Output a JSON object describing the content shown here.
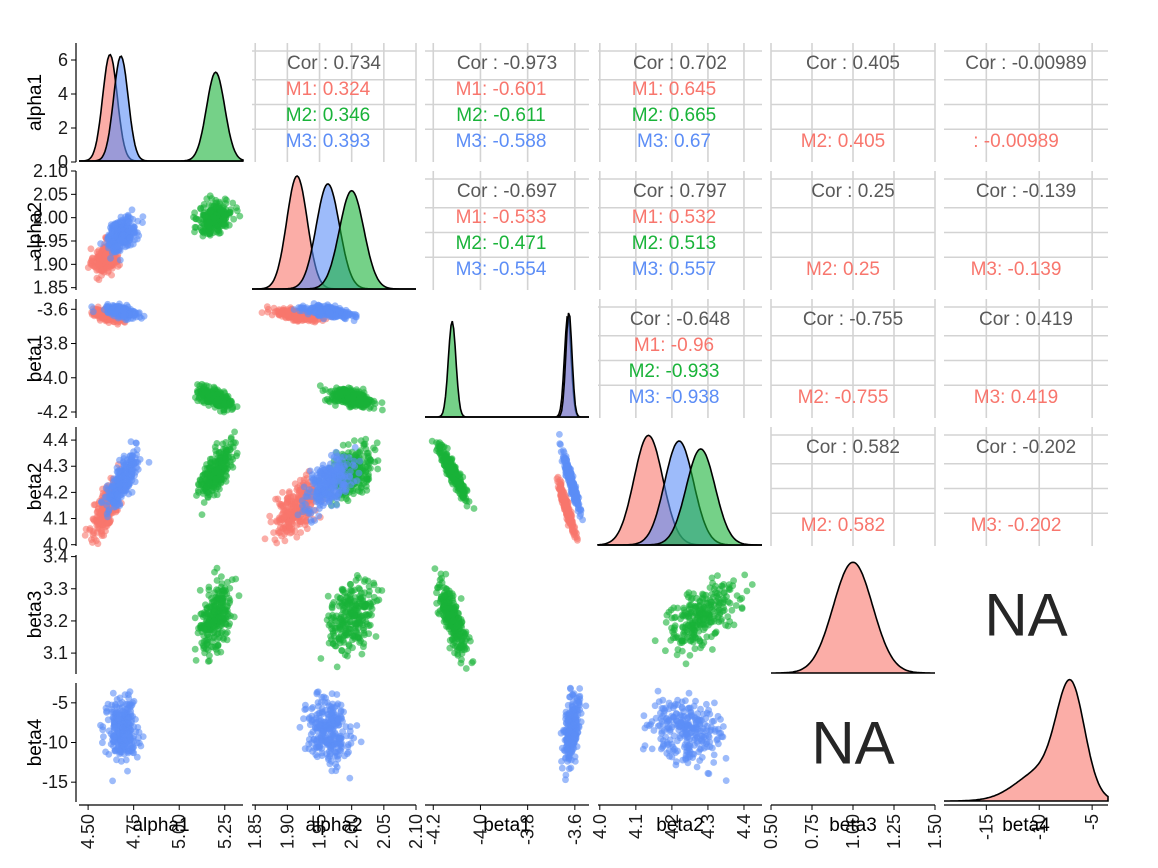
{
  "colors": {
    "M1": "#F8766D",
    "M2": "#19B339",
    "M3": "#5C8DF6"
  },
  "chart_data": {
    "type": "scatter",
    "variables": [
      "alpha1",
      "alpha2",
      "beta1",
      "beta2",
      "beta3",
      "beta4"
    ],
    "ranges": {
      "alpha1": [
        4.45,
        5.35
      ],
      "alpha2": [
        1.845,
        2.1
      ],
      "beta1": [
        -4.235,
        -3.54
      ],
      "beta2": [
        3.995,
        4.45
      ],
      "beta3": [
        3.035,
        3.405
      ],
      "beta4": [
        -17.5,
        -2.5
      ]
    },
    "diag_ranges": {
      "beta3": [
        0.5,
        1.5
      ],
      "beta4": [
        -19,
        -3.5
      ]
    },
    "ticks": {
      "alpha1": [
        4.5,
        4.75,
        5.0,
        5.25
      ],
      "alpha2": [
        1.85,
        1.9,
        1.95,
        2.0,
        2.05,
        2.1
      ],
      "beta1": [
        -4.2,
        -4.0,
        -3.8,
        -3.6
      ],
      "beta2": [
        4.0,
        4.1,
        4.2,
        4.3,
        4.4
      ],
      "beta3": [
        3.1,
        3.2,
        3.3,
        3.4
      ],
      "beta4": [
        -15,
        -10,
        -5
      ]
    },
    "tick_labels": {
      "alpha1": [
        "4.50",
        "4.75",
        "5.00",
        "5.25"
      ],
      "alpha2": [
        "1.85",
        "1.90",
        "1.95",
        "2.00",
        "2.05",
        "2.10"
      ],
      "beta1": [
        "-4.2",
        "-4.0",
        "-3.8",
        "-3.6"
      ],
      "beta2": [
        "4.0",
        "4.1",
        "4.2",
        "4.3",
        "4.4"
      ],
      "beta3": [
        "3.1",
        "3.2",
        "3.3",
        "3.4"
      ],
      "beta4": [
        "-15",
        "-10",
        "-5"
      ]
    },
    "bottom_ticks": {
      "alpha1": {
        "values": [
          4.5,
          4.75,
          5.0,
          5.25
        ],
        "labels": [
          "4.50",
          "4.75",
          "5.00",
          "5.25"
        ]
      },
      "alpha2": {
        "values": [
          1.85,
          1.9,
          1.95,
          2.0,
          2.05,
          2.1
        ],
        "labels": [
          "1.85",
          "1.90",
          "1.95",
          "2.00",
          "2.05",
          "2.10"
        ]
      },
      "beta1": {
        "values": [
          -4.2,
          -4.0,
          -3.8,
          -3.6
        ],
        "labels": [
          "-4.2",
          "-4.0",
          "-3.8",
          "-3.6"
        ]
      },
      "beta2": {
        "values": [
          4.0,
          4.1,
          4.2,
          4.3,
          4.4
        ],
        "labels": [
          "4.0",
          "4.1",
          "4.2",
          "4.3",
          "4.4"
        ]
      },
      "beta3": {
        "values": [
          0.5,
          0.75,
          1.0,
          1.25,
          1.5
        ],
        "labels": [
          "0.50",
          "0.75",
          "1.00",
          "1.25",
          "1.50"
        ]
      },
      "beta4": {
        "values": [
          -15,
          -10,
          -5
        ],
        "labels": [
          "-15",
          "-10",
          "-5"
        ]
      }
    },
    "diagonal": [
      {
        "var": "alpha1",
        "groups": [
          {
            "group": "M1",
            "modes": [
              {
                "mean": 4.62,
                "sd": 0.04,
                "peak": 6.6
              }
            ]
          },
          {
            "group": "M3",
            "modes": [
              {
                "mean": 4.68,
                "sd": 0.04,
                "peak": 6.5
              }
            ]
          },
          {
            "group": "M2",
            "modes": [
              {
                "mean": 5.2,
                "sd": 0.05,
                "peak": 5.5
              }
            ]
          }
        ]
      },
      {
        "var": "alpha2",
        "groups": [
          {
            "group": "M1",
            "modes": [
              {
                "mean": 1.915,
                "sd": 0.016,
                "peak": 1
              }
            ]
          },
          {
            "group": "M3",
            "modes": [
              {
                "mean": 1.963,
                "sd": 0.018,
                "peak": 0.93
              }
            ]
          },
          {
            "group": "M2",
            "modes": [
              {
                "mean": 2.0,
                "sd": 0.019,
                "peak": 0.87
              }
            ]
          }
        ]
      },
      {
        "var": "beta1",
        "groups": [
          {
            "group": "M2",
            "modes": [
              {
                "mean": -4.12,
                "sd": 0.016,
                "peak": 0.85
              }
            ]
          },
          {
            "group": "M1",
            "modes": [
              {
                "mean": -3.63,
                "sd": 0.014,
                "peak": 0.9
              }
            ]
          },
          {
            "group": "M3",
            "modes": [
              {
                "mean": -3.625,
                "sd": 0.013,
                "peak": 0.93
              }
            ]
          }
        ]
      },
      {
        "var": "beta2",
        "groups": [
          {
            "group": "M1",
            "modes": [
              {
                "mean": 4.135,
                "sd": 0.04,
                "peak": 0.97
              }
            ]
          },
          {
            "group": "M3",
            "modes": [
              {
                "mean": 4.22,
                "sd": 0.04,
                "peak": 0.92
              }
            ]
          },
          {
            "group": "M2",
            "modes": [
              {
                "mean": 4.28,
                "sd": 0.04,
                "peak": 0.85
              }
            ]
          }
        ]
      },
      {
        "var": "beta3",
        "groups": [
          {
            "group": "M1",
            "modes": [
              {
                "mean": 1.0,
                "sd": 0.12,
                "peak": 0.98
              }
            ]
          }
        ]
      },
      {
        "var": "beta4",
        "groups": [
          {
            "group": "M1",
            "modes": [
              {
                "mean": -7.0,
                "sd": 1.3,
                "peak": 0.9
              },
              {
                "mean": -9.5,
                "sd": 2.5,
                "peak": 0.28
              }
            ]
          }
        ]
      }
    ],
    "correlations": [
      {
        "row": "alpha1",
        "col": "alpha2",
        "overall": "Cor : 0.734",
        "groups": [
          {
            "label": "M1: 0.324",
            "group": "M1"
          },
          {
            "label": "M2: 0.346",
            "group": "M2"
          },
          {
            "label": "M3: 0.393",
            "group": "M3"
          }
        ]
      },
      {
        "row": "alpha1",
        "col": "beta1",
        "overall": "Cor : -0.973",
        "groups": [
          {
            "label": "M1: -0.601",
            "group": "M1"
          },
          {
            "label": "M2: -0.611",
            "group": "M2"
          },
          {
            "label": "M3: -0.588",
            "group": "M3"
          }
        ]
      },
      {
        "row": "alpha1",
        "col": "beta2",
        "overall": "Cor : 0.702",
        "groups": [
          {
            "label": "M1: 0.645",
            "group": "M1"
          },
          {
            "label": "M2: 0.665",
            "group": "M2"
          },
          {
            "label": "M3: 0.67",
            "group": "M3"
          }
        ]
      },
      {
        "row": "alpha1",
        "col": "beta3",
        "overall": "Cor : 0.405",
        "groups": [
          {
            "label": "M2: 0.405",
            "group": "M1"
          }
        ]
      },
      {
        "row": "alpha1",
        "col": "beta4",
        "overall": "Cor : -0.00989",
        "groups": [
          {
            "label": ": -0.00989",
            "group": "M1"
          }
        ]
      },
      {
        "row": "alpha2",
        "col": "beta1",
        "overall": "Cor : -0.697",
        "groups": [
          {
            "label": "M1: -0.533",
            "group": "M1"
          },
          {
            "label": "M2: -0.471",
            "group": "M2"
          },
          {
            "label": "M3: -0.554",
            "group": "M3"
          }
        ]
      },
      {
        "row": "alpha2",
        "col": "beta2",
        "overall": "Cor : 0.797",
        "groups": [
          {
            "label": "M1: 0.532",
            "group": "M1"
          },
          {
            "label": "M2: 0.513",
            "group": "M2"
          },
          {
            "label": "M3: 0.557",
            "group": "M3"
          }
        ]
      },
      {
        "row": "alpha2",
        "col": "beta3",
        "overall": "Cor : 0.25",
        "groups": [
          {
            "label": "M2: 0.25",
            "group": "M1"
          }
        ]
      },
      {
        "row": "alpha2",
        "col": "beta4",
        "overall": "Cor : -0.139",
        "groups": [
          {
            "label": "M3: -0.139",
            "group": "M1"
          }
        ]
      },
      {
        "row": "beta1",
        "col": "beta2",
        "overall": "Cor : -0.648",
        "groups": [
          {
            "label": "M1: -0.96",
            "group": "M1"
          },
          {
            "label": "M2: -0.933",
            "group": "M2"
          },
          {
            "label": "M3: -0.938",
            "group": "M3"
          }
        ]
      },
      {
        "row": "beta1",
        "col": "beta3",
        "overall": "Cor : -0.755",
        "groups": [
          {
            "label": "M2: -0.755",
            "group": "M1"
          }
        ]
      },
      {
        "row": "beta1",
        "col": "beta4",
        "overall": "Cor : 0.419",
        "groups": [
          {
            "label": "M3: 0.419",
            "group": "M1"
          }
        ]
      },
      {
        "row": "beta2",
        "col": "beta3",
        "overall": "Cor : 0.582",
        "groups": [
          {
            "label": "M2: 0.582",
            "group": "M1"
          }
        ]
      },
      {
        "row": "beta2",
        "col": "beta4",
        "overall": "Cor : -0.202",
        "groups": [
          {
            "label": "M3: -0.202",
            "group": "M1"
          }
        ]
      }
    ],
    "na_cells": [
      {
        "row": "beta3",
        "col": "beta4",
        "label": "NA"
      },
      {
        "row": "beta4",
        "col": "beta3",
        "label": "NA"
      }
    ],
    "group_stats": {
      "alpha1": {
        "M1": [
          4.6,
          0.035
        ],
        "M2": [
          5.2,
          0.045
        ],
        "M3": [
          4.685,
          0.04
        ]
      },
      "alpha2": {
        "M1": [
          1.915,
          0.017
        ],
        "M2": [
          2.0,
          0.018
        ],
        "M3": [
          1.965,
          0.018
        ]
      },
      "beta1": {
        "M1": [
          -3.635,
          0.018
        ],
        "M2": [
          -4.12,
          0.03
        ],
        "M3": [
          -3.615,
          0.017
        ]
      },
      "beta2": {
        "M1": [
          4.14,
          0.05
        ],
        "M2": [
          4.28,
          0.05
        ],
        "M3": [
          4.24,
          0.05
        ]
      },
      "beta3": {
        "M2": [
          3.21,
          0.055
        ]
      },
      "beta4": {
        "M3": [
          -8.5,
          2.0
        ]
      }
    },
    "scatter": [
      {
        "row": "alpha2",
        "col": "alpha1",
        "groups": [
          {
            "group": "M1",
            "r": 0.32
          },
          {
            "group": "M2",
            "r": 0.35
          },
          {
            "group": "M3",
            "r": 0.39
          }
        ]
      },
      {
        "row": "beta1",
        "col": "alpha1",
        "groups": [
          {
            "group": "M1",
            "r": -0.6
          },
          {
            "group": "M2",
            "r": -0.61
          },
          {
            "group": "M3",
            "r": -0.59
          }
        ]
      },
      {
        "row": "beta1",
        "col": "alpha2",
        "groups": [
          {
            "group": "M1",
            "r": -0.53
          },
          {
            "group": "M2",
            "r": -0.47
          },
          {
            "group": "M3",
            "r": -0.55
          }
        ]
      },
      {
        "row": "beta2",
        "col": "alpha1",
        "groups": [
          {
            "group": "M1",
            "r": 0.65
          },
          {
            "group": "M2",
            "r": 0.67
          },
          {
            "group": "M3",
            "r": 0.67
          }
        ]
      },
      {
        "row": "beta2",
        "col": "alpha2",
        "groups": [
          {
            "group": "M1",
            "r": 0.53
          },
          {
            "group": "M2",
            "r": 0.51
          },
          {
            "group": "M3",
            "r": 0.56
          }
        ]
      },
      {
        "row": "beta2",
        "col": "beta1",
        "groups": [
          {
            "group": "M1",
            "r": -0.96
          },
          {
            "group": "M2",
            "r": -0.93
          },
          {
            "group": "M3",
            "r": -0.94
          }
        ]
      },
      {
        "row": "beta3",
        "col": "alpha1",
        "groups": [
          {
            "group": "M2",
            "r": 0.4
          }
        ]
      },
      {
        "row": "beta3",
        "col": "alpha2",
        "groups": [
          {
            "group": "M2",
            "r": 0.25
          }
        ]
      },
      {
        "row": "beta3",
        "col": "beta1",
        "groups": [
          {
            "group": "M2",
            "r": -0.75
          }
        ]
      },
      {
        "row": "beta3",
        "col": "beta2",
        "groups": [
          {
            "group": "M2",
            "r": 0.58
          }
        ]
      },
      {
        "row": "beta4",
        "col": "alpha1",
        "groups": [
          {
            "group": "M3",
            "r": -0.01
          }
        ]
      },
      {
        "row": "beta4",
        "col": "alpha2",
        "groups": [
          {
            "group": "M3",
            "r": -0.14
          }
        ]
      },
      {
        "row": "beta4",
        "col": "beta1",
        "groups": [
          {
            "group": "M3",
            "r": 0.42
          }
        ]
      },
      {
        "row": "beta4",
        "col": "beta2",
        "groups": [
          {
            "group": "M3",
            "r": -0.2
          }
        ]
      }
    ],
    "points_per_group": 260
  }
}
